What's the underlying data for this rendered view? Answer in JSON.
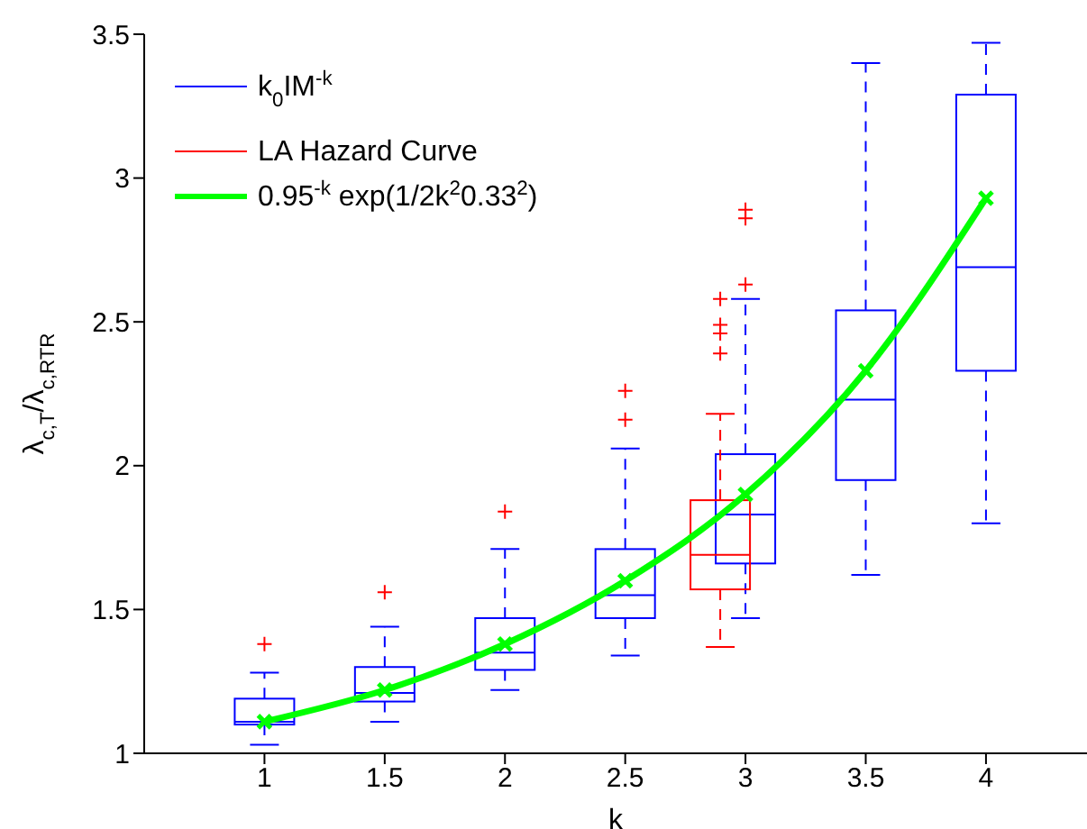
{
  "chart_data": {
    "type": "box",
    "categories": [
      "1",
      "1.5",
      "2",
      "2.5",
      "3",
      "3.5",
      "4"
    ],
    "xlabel": "k",
    "ylabel": "λ$_{c,T}$/λ$_{c,RTR}$",
    "ylim": [
      1,
      3.5
    ],
    "yticks": [
      1,
      1.5,
      2,
      2.5,
      3,
      3.5
    ],
    "legend": "top left",
    "series": [
      {
        "name": "k$_{0}$IM$^{-k}$",
        "color": "#0000ff",
        "boxes": [
          {
            "low": 1.03,
            "q1": 1.1,
            "median": 1.11,
            "q3": 1.19,
            "high": 1.28,
            "outliers": [
              1.38
            ]
          },
          {
            "low": 1.11,
            "q1": 1.18,
            "median": 1.21,
            "q3": 1.3,
            "high": 1.44,
            "outliers": [
              1.56
            ]
          },
          {
            "low": 1.22,
            "q1": 1.29,
            "median": 1.35,
            "q3": 1.47,
            "high": 1.71,
            "outliers": [
              1.84
            ]
          },
          {
            "low": 1.34,
            "q1": 1.47,
            "median": 1.55,
            "q3": 1.71,
            "high": 2.06,
            "outliers": [
              2.16,
              2.26
            ]
          },
          {
            "low": 1.47,
            "q1": 1.66,
            "median": 1.83,
            "q3": 2.04,
            "high": 2.58,
            "outliers": [
              2.63,
              2.86,
              2.89
            ]
          },
          {
            "low": 1.62,
            "q1": 1.95,
            "median": 2.23,
            "q3": 2.54,
            "high": 3.4
          },
          {
            "low": 1.8,
            "q1": 2.33,
            "median": 2.69,
            "q3": 3.29,
            "high": 3.47
          }
        ]
      },
      {
        "name": "LA Hazard Curve",
        "color": "#ff0000",
        "boxes": [
          null,
          null,
          null,
          null,
          {
            "low": 1.37,
            "q1": 1.57,
            "median": 1.69,
            "q3": 1.88,
            "high": 2.18,
            "outliers": [
              2.39,
              2.46,
              2.49,
              2.58
            ]
          },
          null,
          null
        ]
      },
      {
        "name": "0.95$^{-k}$ exp(1/2k$^{2}$0.33$^{2}$)",
        "type": "line",
        "color": "#00ff00",
        "marker": "cross",
        "values": [
          1.11,
          1.22,
          1.38,
          1.6,
          1.9,
          2.33,
          2.93
        ]
      }
    ]
  }
}
